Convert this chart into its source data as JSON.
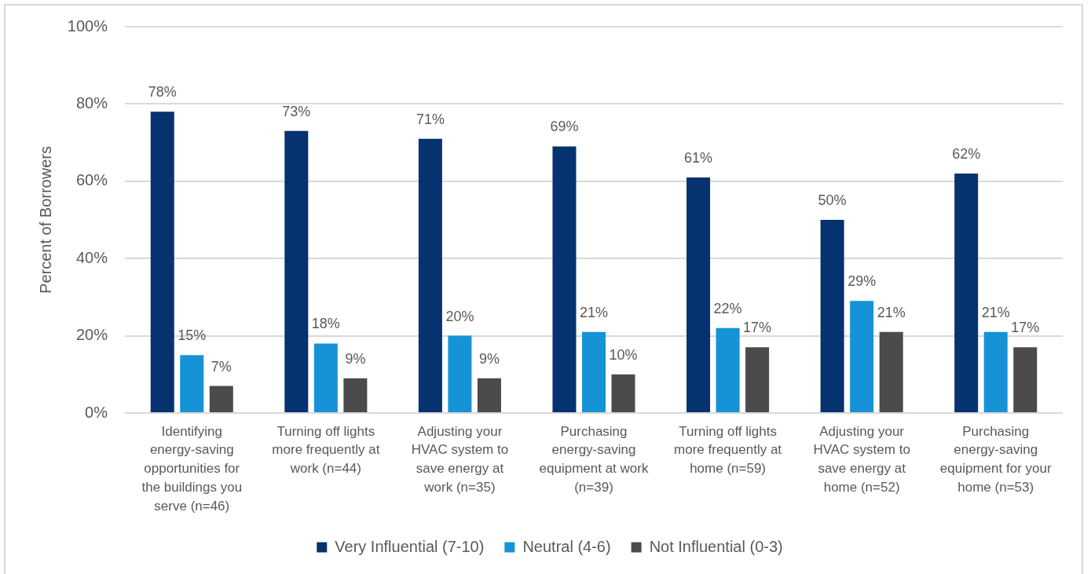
{
  "chart_data": {
    "type": "bar",
    "ylabel": "Percent of Borrowers",
    "categories": [
      "Identifying energy-saving opportunities for the buildings you serve (n=46)",
      "Turning off lights more frequently at work (n=44)",
      "Adjusting your HVAC system to save energy at work (n=35)",
      "Purchasing energy-saving equipment at work (n=39)",
      "Turning off lights more frequently at home (n=59)",
      "Adjusting your HVAC system to save energy at home (n=52)",
      "Purchasing energy-saving equipment for your home (n=53)"
    ],
    "series": [
      {
        "name": "Very Influential (7-10)",
        "color": "#06336f",
        "values": [
          78,
          73,
          71,
          69,
          61,
          50,
          62
        ],
        "value_labels": [
          "78%",
          "73%",
          "71%",
          "69%",
          "61%",
          "50%",
          "62%"
        ]
      },
      {
        "name": "Neutral (4-6)",
        "color": "#1693d7",
        "values": [
          15,
          18,
          20,
          21,
          22,
          29,
          21
        ],
        "value_labels": [
          "15%",
          "18%",
          "20%",
          "21%",
          "22%",
          "29%",
          "21%"
        ]
      },
      {
        "name": "Not Influential (0-3)",
        "color": "#4b4b4d",
        "values": [
          7,
          9,
          9,
          10,
          17,
          21,
          17
        ],
        "value_labels": [
          "7%",
          "9%",
          "9%",
          "10%",
          "17%",
          "21%",
          "17%"
        ]
      }
    ],
    "ylim": [
      0,
      100
    ],
    "yticks": [
      {
        "value": 0,
        "label": "0%"
      },
      {
        "value": 20,
        "label": "20%"
      },
      {
        "value": 40,
        "label": "40%"
      },
      {
        "value": 60,
        "label": "60%"
      },
      {
        "value": 80,
        "label": "80%"
      },
      {
        "value": 100,
        "label": "100%"
      }
    ],
    "grid": "y",
    "legend": "bottom"
  }
}
